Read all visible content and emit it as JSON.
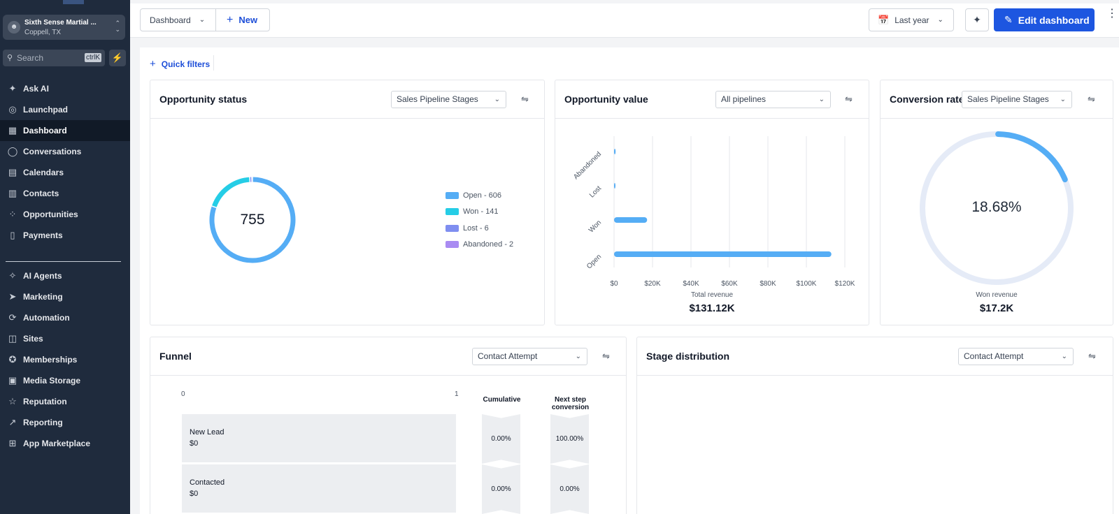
{
  "sidebar": {
    "account_name": "Sixth Sense Martial ...",
    "account_location": "Coppell, TX",
    "search_placeholder": "Search",
    "search_shortcut": "ctrlK",
    "items": [
      {
        "label": "Ask AI",
        "icon": "sparkles-icon"
      },
      {
        "label": "Launchpad",
        "icon": "rocket-icon"
      },
      {
        "label": "Dashboard",
        "icon": "grid-icon",
        "active": true
      },
      {
        "label": "Conversations",
        "icon": "chat-icon"
      },
      {
        "label": "Calendars",
        "icon": "calendar-icon"
      },
      {
        "label": "Contacts",
        "icon": "contacts-icon"
      },
      {
        "label": "Opportunities",
        "icon": "network-icon"
      },
      {
        "label": "Payments",
        "icon": "receipt-icon"
      },
      {
        "label": "AI Agents",
        "icon": "ai-agents-icon"
      },
      {
        "label": "Marketing",
        "icon": "send-icon"
      },
      {
        "label": "Automation",
        "icon": "automation-icon"
      },
      {
        "label": "Sites",
        "icon": "sites-icon"
      },
      {
        "label": "Memberships",
        "icon": "award-icon"
      },
      {
        "label": "Media Storage",
        "icon": "image-icon"
      },
      {
        "label": "Reputation",
        "icon": "star-icon"
      },
      {
        "label": "Reporting",
        "icon": "trend-icon"
      },
      {
        "label": "App Marketplace",
        "icon": "apps-icon"
      }
    ]
  },
  "toolbar": {
    "dashboard_label": "Dashboard",
    "new_label": "New",
    "date_range_label": "Last year",
    "edit_label": "Edit dashboard",
    "quick_filters_label": "Quick filters"
  },
  "opportunity_status": {
    "title": "Opportunity status",
    "dropdown": "Sales Pipeline Stages",
    "total": "755",
    "legend": [
      "Open - 606",
      "Won - 141",
      "Lost - 6",
      "Abandoned - 2"
    ],
    "colors": [
      "#55adf5",
      "#25cde6",
      "#7f8ef0",
      "#a98bf2"
    ]
  },
  "opportunity_value": {
    "title": "Opportunity value",
    "dropdown": "All pipelines",
    "caption": "Total revenue",
    "total": "$131.12K"
  },
  "conversion_rate": {
    "title": "Conversion rate",
    "dropdown": "Sales Pipeline Stages",
    "value": "18.68%",
    "percent": 18.68,
    "caption": "Won revenue",
    "total": "$17.2K"
  },
  "funnel": {
    "title": "Funnel",
    "dropdown": "Contact Attempt",
    "axis_min": "0",
    "axis_max": "1",
    "col_cumulative": "Cumulative",
    "col_next_step": "Next step conversion",
    "rows": [
      {
        "name": "New Lead",
        "value": "$0",
        "cumulative": "0.00%",
        "next": "100.00%"
      },
      {
        "name": "Contacted",
        "value": "$0",
        "cumulative": "0.00%",
        "next": "0.00%"
      }
    ]
  },
  "stage_distribution": {
    "title": "Stage distribution",
    "dropdown": "Contact Attempt"
  },
  "chart_data": {
    "type": "bar",
    "orientation": "horizontal",
    "categories": [
      "Abandoned",
      "Lost",
      "Won",
      "Open"
    ],
    "values": [
      800,
      700,
      17200,
      113000
    ],
    "xlim": [
      0,
      120000
    ],
    "xticks": [
      "$0",
      "$20K",
      "$40K",
      "$60K",
      "$80K",
      "$100K",
      "$120K"
    ],
    "grid": "vertical",
    "color": "#55adf5"
  }
}
